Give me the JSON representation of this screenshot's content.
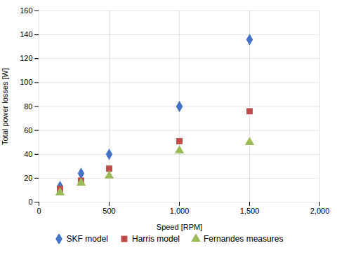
{
  "chart_data": {
    "type": "scatter",
    "xlabel": "Speed [RPM]",
    "ylabel": "Total power losses [W]",
    "x": [
      150,
      300,
      500,
      1000,
      1500
    ],
    "series": [
      {
        "name": "SKF model",
        "color": "#4472C4",
        "marker": "diamond",
        "values": [
          13,
          24,
          40,
          80,
          136
        ]
      },
      {
        "name": "Harris model",
        "color": "#BE4B48",
        "marker": "square",
        "values": [
          11,
          18,
          28,
          51,
          76
        ]
      },
      {
        "name": "Fernandes measures",
        "color": "#9BBB59",
        "marker": "triangle",
        "values": [
          8,
          16,
          22,
          43,
          50
        ]
      }
    ],
    "xlim": [
      0,
      2000
    ],
    "ylim": [
      0,
      160
    ],
    "xticks": [
      0,
      500,
      1000,
      1500,
      2000
    ],
    "yticks": [
      0,
      20,
      40,
      60,
      80,
      100,
      120,
      140,
      160
    ],
    "grid": true,
    "legend": "bottom"
  }
}
